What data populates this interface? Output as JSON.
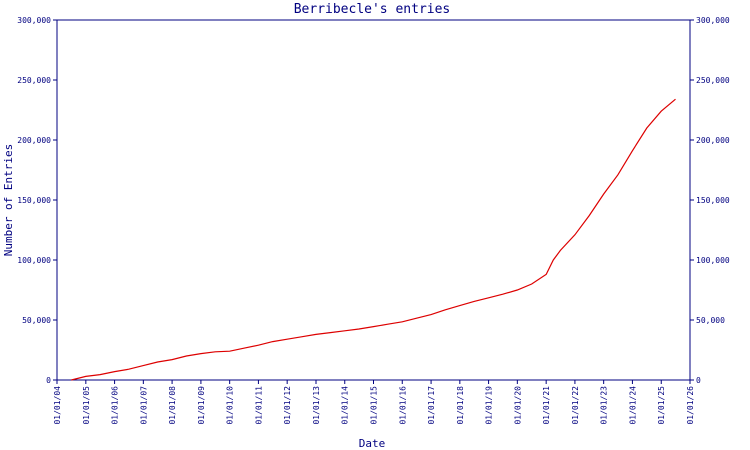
{
  "chart_data": {
    "type": "line",
    "title": "Berribecle's entries",
    "xlabel": "Date",
    "ylabel": "Number of Entries",
    "ylim": [
      0,
      300000
    ],
    "y_ticks": [
      0,
      50000,
      100000,
      150000,
      200000,
      250000,
      300000
    ],
    "y_tick_labels": [
      "0",
      "50,000",
      "100,000",
      "150,000",
      "200,000",
      "250,000",
      "300,000"
    ],
    "y_axis_right": true,
    "xlim": [
      "2004-01-01",
      "2026-01-01"
    ],
    "x_ticks": [
      "2004-01-01",
      "2005-01-01",
      "2006-01-01",
      "2007-01-01",
      "2008-01-01",
      "2009-01-01",
      "2010-01-01",
      "2011-01-01",
      "2012-01-01",
      "2013-01-01",
      "2014-01-01",
      "2015-01-01",
      "2016-01-01",
      "2017-01-01",
      "2018-01-01",
      "2019-01-01",
      "2020-01-01",
      "2021-01-01",
      "2022-01-01",
      "2023-01-01",
      "2024-01-01",
      "2025-01-01",
      "2026-01-01"
    ],
    "x_tick_labels": [
      "01/01/04",
      "01/01/05",
      "01/01/06",
      "01/01/07",
      "01/01/08",
      "01/01/09",
      "01/01/10",
      "01/01/11",
      "01/01/12",
      "01/01/13",
      "01/01/14",
      "01/01/15",
      "01/01/16",
      "01/01/17",
      "01/01/18",
      "01/01/19",
      "01/01/20",
      "01/01/21",
      "01/01/22",
      "01/01/23",
      "01/01/24",
      "01/01/25",
      "01/01/26"
    ],
    "grid": false,
    "colors": {
      "axis": "#000080",
      "text": "#000080",
      "line": "#dd0000"
    },
    "series": [
      {
        "x": [
          "2004-07-01",
          "2005-01-01",
          "2005-07-01",
          "2006-01-01",
          "2006-07-01",
          "2007-01-01",
          "2007-07-01",
          "2008-01-01",
          "2008-07-01",
          "2009-01-01",
          "2009-07-01",
          "2010-01-01",
          "2010-07-01",
          "2011-01-01",
          "2011-07-01",
          "2012-01-01",
          "2012-07-01",
          "2013-01-01",
          "2013-07-01",
          "2014-01-01",
          "2014-07-01",
          "2015-01-01",
          "2015-07-01",
          "2016-01-01",
          "2016-07-01",
          "2017-01-01",
          "2017-07-01",
          "2018-01-01",
          "2018-07-01",
          "2019-01-01",
          "2019-07-01",
          "2020-01-01",
          "2020-07-01",
          "2021-01-01",
          "2021-04-01",
          "2021-07-01",
          "2022-01-01",
          "2022-07-01",
          "2023-01-01",
          "2023-07-01",
          "2024-01-01",
          "2024-07-01",
          "2025-01-01",
          "2025-07-01"
        ],
        "y": [
          0,
          3000,
          4500,
          7000,
          9000,
          12000,
          15000,
          17000,
          20000,
          22000,
          23500,
          24000,
          26500,
          29000,
          32000,
          34000,
          36000,
          38000,
          39500,
          41000,
          42500,
          44500,
          46500,
          48500,
          51500,
          54500,
          58500,
          62000,
          65500,
          68500,
          71500,
          75000,
          80000,
          88000,
          100000,
          108000,
          121000,
          137000,
          155000,
          171000,
          191000,
          210000,
          224000,
          234000
        ]
      }
    ]
  }
}
